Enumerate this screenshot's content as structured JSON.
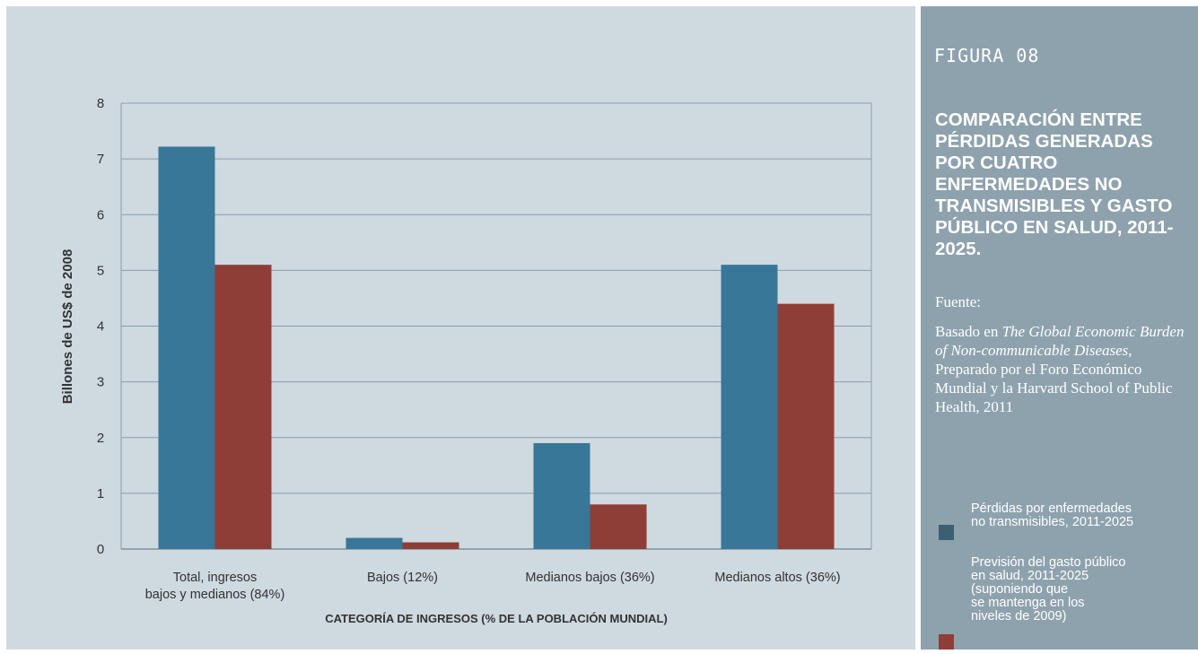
{
  "chart_data": {
    "type": "bar",
    "categories": [
      [
        "Total, ingresos",
        "bajos y medianos (84%)"
      ],
      [
        "Bajos (12%)"
      ],
      [
        "Medianos bajos (36%)"
      ],
      [
        "Medianos altos (36%)"
      ]
    ],
    "series": [
      {
        "name": "Pérdidas por enfermedades no transmisibles, 2011-2025",
        "color": "#387797",
        "values": [
          7.22,
          0.2,
          1.9,
          5.1
        ]
      },
      {
        "name": "Previsión del gasto público en salud, 2011-2025 (suponiendo que se mantenga en los niveles de 2009)",
        "color": "#8e3e37",
        "values": [
          5.1,
          0.12,
          0.8,
          4.4
        ]
      }
    ],
    "ylabel": "Billones de US$ de 2008",
    "xlabel": "CATEGORÍA DE INGRESOS (% DE LA POBLACIÓN MUNDIAL)",
    "ylim": [
      0,
      8
    ],
    "yticks": [
      "0",
      "1",
      "2",
      "3",
      "4",
      "5",
      "6",
      "7",
      "8"
    ],
    "grid": true,
    "legend_position": "right panel"
  },
  "panel": {
    "figure_label": "FIGURA 08",
    "title": "COMPARACIÓN ENTRE PÉRDIDAS GENERADAS POR CUATRO ENFERMEDADES NO TRANSMISIBLES Y GASTO PÚBLICO EN SALUD, 2011-2025.",
    "source_label": "Fuente:",
    "source_intro": "Basado en ",
    "source_work": "The Global Economic Burden of Non-communicable Diseases,",
    "source_rest": " Preparado por el Foro Económico Mundial y la Harvard School of Public Health, 2011"
  },
  "legend": [
    {
      "lines": [
        "Pérdidas por enfermedades",
        "no transmisibles, 2011-2025"
      ],
      "color": "#3b5f73"
    },
    {
      "lines": [
        "Previsión del gasto público",
        "en salud, 2011-2025",
        "(suponiendo que",
        "se mantenga en los",
        "niveles de 2009)"
      ],
      "color": "#8e3e37"
    }
  ]
}
